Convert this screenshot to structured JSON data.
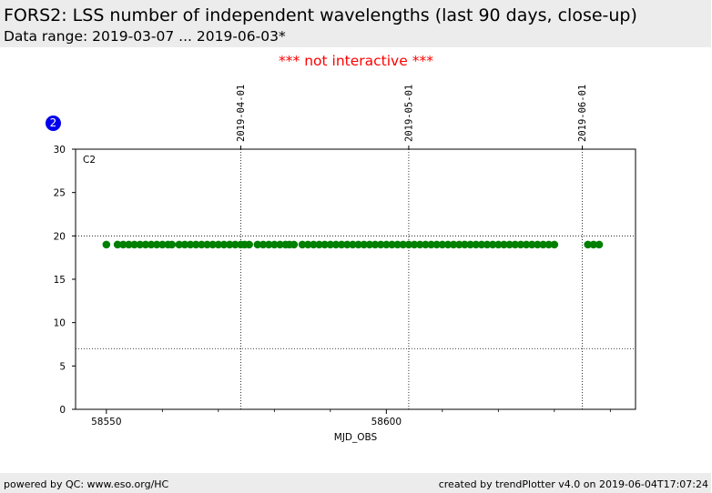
{
  "header": {
    "title": "FORS2:  LSS number of independent wavelengths (last 90 days, close-up)",
    "subtitle": "Data range: 2019-03-07 ... 2019-06-03*"
  },
  "notice": "*** not interactive ***",
  "badge": {
    "label": "2",
    "color": "#0000ee"
  },
  "footer": {
    "left": "powered by QC: www.eso.org/HC",
    "right": "created by trendPlotter v4.0 on 2019-06-04T17:07:24"
  },
  "chart_data": {
    "type": "scatter",
    "panel_label": "C2",
    "xlabel": "MJD_OBS",
    "ylabel": "",
    "xlim": [
      58544.5,
      58644.5
    ],
    "ylim": [
      0,
      30
    ],
    "x_ticks": [
      58550,
      58600
    ],
    "x_minor_ticks": [
      58560,
      58570,
      58580,
      58590,
      58610,
      58620,
      58630,
      58640
    ],
    "y_ticks": [
      0,
      5,
      10,
      15,
      20,
      25,
      30
    ],
    "top_axis_dates": [
      {
        "label": "2019-04-01",
        "mjd": 58574
      },
      {
        "label": "2019-05-01",
        "mjd": 58604
      },
      {
        "label": "2019-06-01",
        "mjd": 58635
      }
    ],
    "threshold_lines": [
      20,
      7
    ],
    "grid": "dotted vertical lines at month starts",
    "marker_color": "#008000",
    "series": [
      {
        "y_value": 19,
        "x": [
          58550.0,
          58552.0,
          58553.0,
          58554.0,
          58555.0,
          58556.0,
          58557.0,
          58558.0,
          58559.0,
          58560.0,
          58561.0,
          58561.7,
          58563.0,
          58564.0,
          58565.0,
          58566.0,
          58567.0,
          58568.0,
          58569.0,
          58570.0,
          58571.0,
          58572.0,
          58573.0,
          58574.0,
          58574.7,
          58575.5,
          58577.0,
          58578.0,
          58579.0,
          58580.0,
          58581.0,
          58582.0,
          58582.7,
          58583.5,
          58585.0,
          58586.0,
          58587.0,
          58588.0,
          58589.0,
          58590.0,
          58591.0,
          58592.0,
          58593.0,
          58594.0,
          58595.0,
          58596.0,
          58597.0,
          58598.0,
          58599.0,
          58600.0,
          58601.0,
          58602.0,
          58603.0,
          58604.0,
          58605.0,
          58606.0,
          58607.0,
          58608.0,
          58609.0,
          58610.0,
          58611.0,
          58612.0,
          58613.0,
          58614.0,
          58615.0,
          58616.0,
          58617.0,
          58618.0,
          58619.0,
          58620.0,
          58621.0,
          58622.0,
          58623.0,
          58624.0,
          58625.0,
          58626.0,
          58627.0,
          58628.0,
          58629.0,
          58630.0,
          58636.0,
          58637.0,
          58638.0
        ]
      }
    ]
  }
}
